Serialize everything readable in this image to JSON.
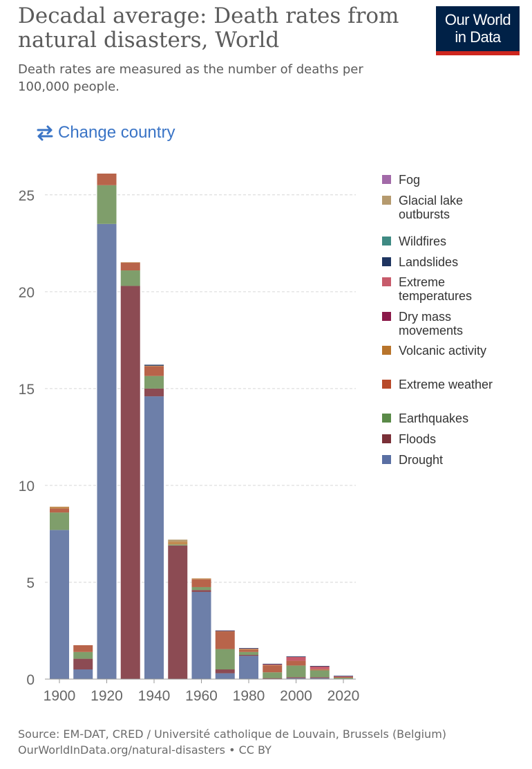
{
  "header": {
    "title": "Decadal average: Death rates from natural disasters, World",
    "subtitle": "Death rates are measured as the number of deaths per 100,000 people.",
    "logo_line1": "Our World",
    "logo_line2": "in Data",
    "change_country": "Change country"
  },
  "footer": {
    "source": "Source: EM-DAT, CRED / Université catholique de Louvain, Brussels (Belgium)",
    "url": "OurWorldInData.org/natural-disasters • CC BY"
  },
  "colors": {
    "logo_bg": "#002147",
    "logo_bar": "#ce261e",
    "link": "#3a74c6"
  },
  "chart_data": {
    "type": "bar",
    "stacked": true,
    "categories": [
      "1900",
      "1910",
      "1920",
      "1930",
      "1940",
      "1950",
      "1960",
      "1970",
      "1980",
      "1990",
      "2000",
      "2010",
      "2020"
    ],
    "x_ticks": [
      "1900",
      "1920",
      "1940",
      "1960",
      "1980",
      "2000",
      "2020"
    ],
    "y_ticks": [
      0,
      5,
      10,
      15,
      20,
      25
    ],
    "ylim": [
      0,
      26.5
    ],
    "grid": true,
    "legend_position": "right",
    "series": [
      {
        "name": "Drought",
        "color": "#6d7fa9",
        "values": [
          7.7,
          0.5,
          23.5,
          0,
          14.6,
          0,
          4.5,
          0.3,
          1.2,
          0,
          0.05,
          0.05,
          0
        ]
      },
      {
        "name": "Floods",
        "color": "#8c4b53",
        "values": [
          0,
          0.55,
          0,
          20.3,
          0.4,
          6.9,
          0.1,
          0.2,
          0.05,
          0.05,
          0.05,
          0.05,
          0.02
        ]
      },
      {
        "name": "Earthquakes",
        "color": "#7f9e6b",
        "values": [
          0.9,
          0.35,
          2.0,
          0.8,
          0.65,
          0.05,
          0.15,
          1.05,
          0.15,
          0.3,
          0.6,
          0.35,
          0.05
        ]
      },
      {
        "name": "Extreme weather",
        "color": "#b8644a",
        "values": [
          0.2,
          0.35,
          0.6,
          0.4,
          0.5,
          0,
          0.4,
          0.9,
          0.1,
          0.35,
          0.25,
          0.05,
          0.04
        ]
      },
      {
        "name": "Volcanic activity",
        "color": "#c18b50",
        "values": [
          0.1,
          0,
          0,
          0.02,
          0.03,
          0.15,
          0.05,
          0.02,
          0.05,
          0.02,
          0,
          0.01,
          0
        ]
      },
      {
        "name": "Dry mass movements",
        "color": "#8b3a5a",
        "values": [
          0,
          0,
          0,
          0,
          0,
          0,
          0,
          0,
          0,
          0,
          0,
          0,
          0
        ]
      },
      {
        "name": "Extreme temperatures",
        "color": "#c75b6b",
        "values": [
          0,
          0,
          0,
          0,
          0,
          0,
          0,
          0.02,
          0.03,
          0.05,
          0.2,
          0.15,
          0.05
        ]
      },
      {
        "name": "Landslides",
        "color": "#1f3560",
        "values": [
          0,
          0,
          0,
          0,
          0.05,
          0,
          0,
          0.02,
          0.02,
          0.02,
          0.02,
          0.02,
          0.01
        ]
      },
      {
        "name": "Wildfires",
        "color": "#3f8a83",
        "values": [
          0,
          0,
          0,
          0,
          0,
          0,
          0,
          0,
          0,
          0,
          0,
          0,
          0
        ]
      },
      {
        "name": "Glacial lake outbursts",
        "color": "#b59a6e",
        "values": [
          0,
          0,
          0,
          0,
          0,
          0.1,
          0,
          0,
          0,
          0,
          0,
          0,
          0
        ]
      },
      {
        "name": "Fog",
        "color": "#a26aa8",
        "values": [
          0,
          0,
          0,
          0,
          0,
          0,
          0,
          0,
          0,
          0,
          0,
          0,
          0
        ]
      }
    ],
    "legend": [
      {
        "label": "Fog",
        "color": "#a26aa8"
      },
      {
        "label": "Glacial lake outbursts",
        "color": "#b59a6e"
      },
      {
        "label": "Wildfires",
        "color": "#3f8a83"
      },
      {
        "label": "Landslides",
        "color": "#1f3560"
      },
      {
        "label": "Extreme temperatures",
        "color": "#c75b6b"
      },
      {
        "label": "Dry mass movements",
        "color": "#8b1a4a"
      },
      {
        "label": "Volcanic activity",
        "color": "#b8742b"
      },
      {
        "label": "Extreme weather",
        "color": "#b84a2a"
      },
      {
        "label": "Earthquakes",
        "color": "#5a8a48"
      },
      {
        "label": "Floods",
        "color": "#7a3038"
      },
      {
        "label": "Drought",
        "color": "#5a6fa3"
      }
    ]
  }
}
